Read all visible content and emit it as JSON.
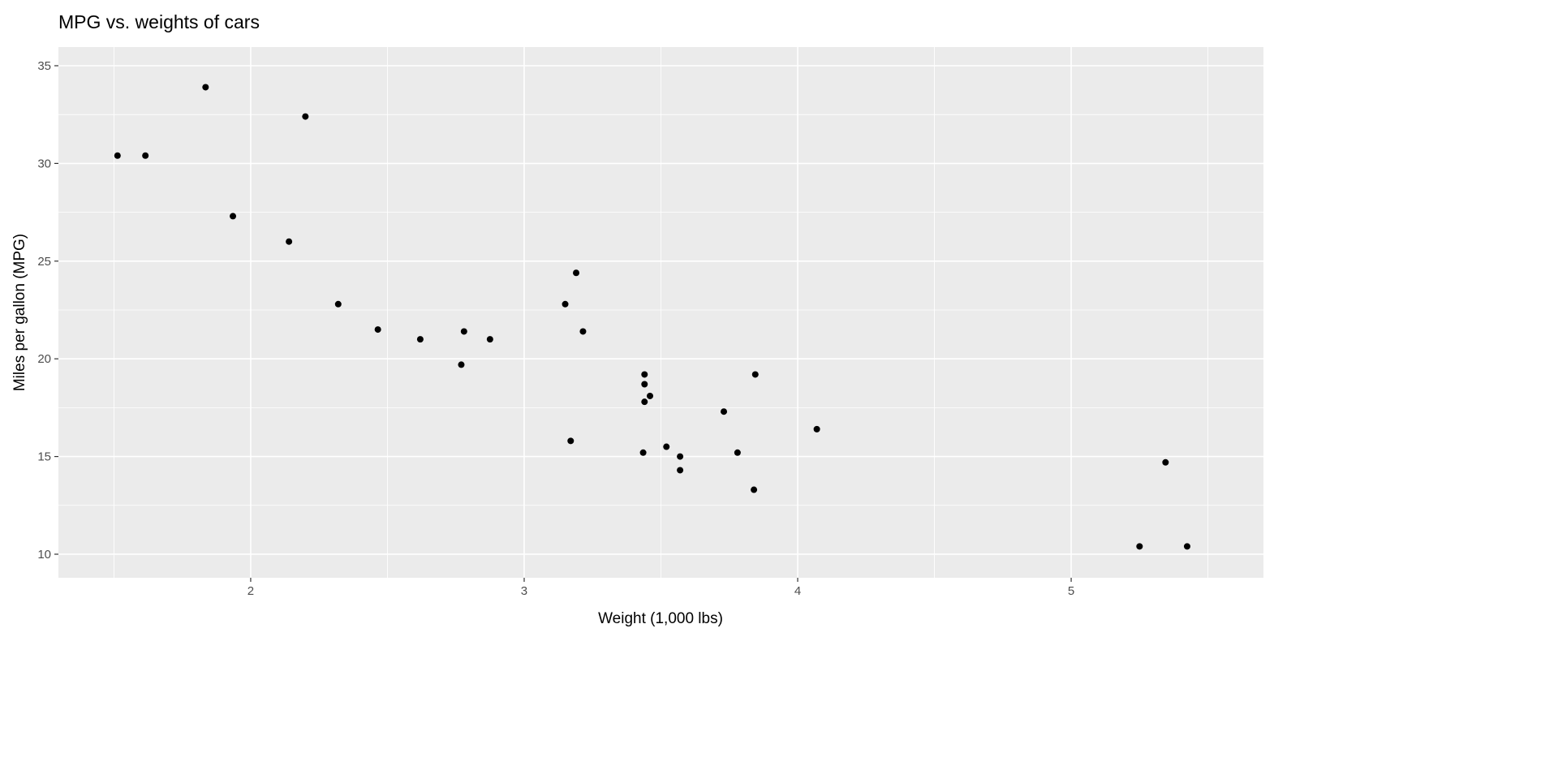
{
  "chart_data": {
    "type": "scatter",
    "title": "MPG vs. weights of cars",
    "xlabel": "Weight (1,000 lbs)",
    "ylabel": "Miles per gallon (MPG)",
    "xlim": [
      1.297,
      5.703
    ],
    "ylim": [
      8.795,
      35.955
    ],
    "xticks": [
      2,
      3,
      4,
      5
    ],
    "yticks": [
      10,
      15,
      20,
      25,
      30,
      35
    ],
    "grid": true,
    "point_color": "#000000",
    "panel_color": "#ebebeb",
    "points": [
      [
        2.62,
        21.0
      ],
      [
        2.875,
        21.0
      ],
      [
        2.32,
        22.8
      ],
      [
        3.215,
        21.4
      ],
      [
        3.44,
        18.7
      ],
      [
        3.46,
        18.1
      ],
      [
        3.57,
        14.3
      ],
      [
        3.19,
        24.4
      ],
      [
        3.15,
        22.8
      ],
      [
        3.44,
        19.2
      ],
      [
        3.44,
        17.8
      ],
      [
        4.07,
        16.4
      ],
      [
        3.73,
        17.3
      ],
      [
        3.78,
        15.2
      ],
      [
        5.25,
        10.4
      ],
      [
        5.424,
        10.4
      ],
      [
        5.345,
        14.7
      ],
      [
        2.2,
        32.4
      ],
      [
        1.615,
        30.4
      ],
      [
        1.835,
        33.9
      ],
      [
        2.465,
        21.5
      ],
      [
        3.52,
        15.5
      ],
      [
        3.435,
        15.2
      ],
      [
        3.84,
        13.3
      ],
      [
        3.845,
        19.2
      ],
      [
        1.935,
        27.3
      ],
      [
        2.14,
        26.0
      ],
      [
        1.513,
        30.4
      ],
      [
        3.17,
        15.8
      ],
      [
        2.77,
        19.7
      ],
      [
        3.57,
        15.0
      ],
      [
        2.78,
        21.4
      ]
    ]
  }
}
